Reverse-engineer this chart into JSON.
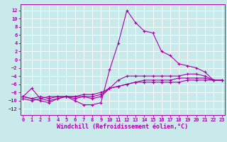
{
  "bg_color": "#c8eaea",
  "line_color": "#aa00aa",
  "grid_color": "#ffffff",
  "xlabel": "Windchill (Refroidissement éolien,°C)",
  "xlabel_fontsize": 6.0,
  "xticks": [
    0,
    1,
    2,
    3,
    4,
    5,
    6,
    7,
    8,
    9,
    10,
    11,
    12,
    13,
    14,
    15,
    16,
    17,
    18,
    19,
    20,
    21,
    22,
    23
  ],
  "yticks": [
    -12,
    -10,
    -8,
    -6,
    -4,
    -2,
    0,
    2,
    4,
    6,
    8,
    10,
    12
  ],
  "xlim": [
    -0.3,
    23.3
  ],
  "ylim": [
    -13.5,
    13.5
  ],
  "tick_fontsize": 5.0,
  "line1_x": [
    0,
    1,
    2,
    3,
    4,
    5,
    6,
    7,
    8,
    9,
    10,
    11,
    12,
    13,
    14,
    15,
    16,
    17,
    18,
    19,
    20,
    21,
    22,
    23
  ],
  "line1_y": [
    -9.0,
    -7.0,
    -9.5,
    -9.0,
    -9.0,
    -9.0,
    -10.0,
    -11.0,
    -11.0,
    -10.5,
    -2.5,
    4.0,
    12.0,
    9.0,
    7.0,
    6.5,
    2.0,
    1.0,
    -1.0,
    -1.5,
    -2.0,
    -3.0,
    -5.0,
    -5.0
  ],
  "line2_x": [
    0,
    1,
    2,
    3,
    4,
    5,
    6,
    7,
    8,
    9,
    10,
    11,
    12,
    13,
    14,
    15,
    16,
    17,
    18,
    19,
    20,
    21,
    22,
    23
  ],
  "line2_y": [
    -9.0,
    -9.5,
    -10.0,
    -10.5,
    -9.5,
    -9.0,
    -9.5,
    -9.0,
    -9.5,
    -9.0,
    -7.0,
    -5.0,
    -4.0,
    -4.0,
    -4.0,
    -4.0,
    -4.0,
    -4.0,
    -4.0,
    -3.5,
    -3.5,
    -4.0,
    -5.0,
    -5.0
  ],
  "line3_x": [
    0,
    1,
    2,
    3,
    4,
    5,
    6,
    7,
    8,
    9,
    10,
    11,
    12,
    13,
    14,
    15,
    16,
    17,
    18,
    19,
    20,
    21,
    22,
    23
  ],
  "line3_y": [
    -9.0,
    -9.5,
    -9.0,
    -9.5,
    -9.0,
    -9.0,
    -9.0,
    -9.0,
    -9.0,
    -8.5,
    -7.0,
    -6.5,
    -6.0,
    -5.5,
    -5.0,
    -5.0,
    -5.0,
    -5.0,
    -4.5,
    -4.5,
    -4.5,
    -4.5,
    -5.0,
    -5.0
  ],
  "line4_x": [
    0,
    1,
    2,
    3,
    4,
    5,
    6,
    7,
    8,
    9,
    10,
    11,
    12,
    13,
    14,
    15,
    16,
    17,
    18,
    19,
    20,
    21,
    22,
    23
  ],
  "line4_y": [
    -9.5,
    -10.0,
    -9.5,
    -10.0,
    -9.5,
    -9.0,
    -9.0,
    -8.5,
    -8.5,
    -8.0,
    -7.0,
    -6.5,
    -6.0,
    -5.5,
    -5.5,
    -5.5,
    -5.5,
    -5.5,
    -5.5,
    -5.0,
    -5.0,
    -5.0,
    -5.0,
    -5.0
  ]
}
